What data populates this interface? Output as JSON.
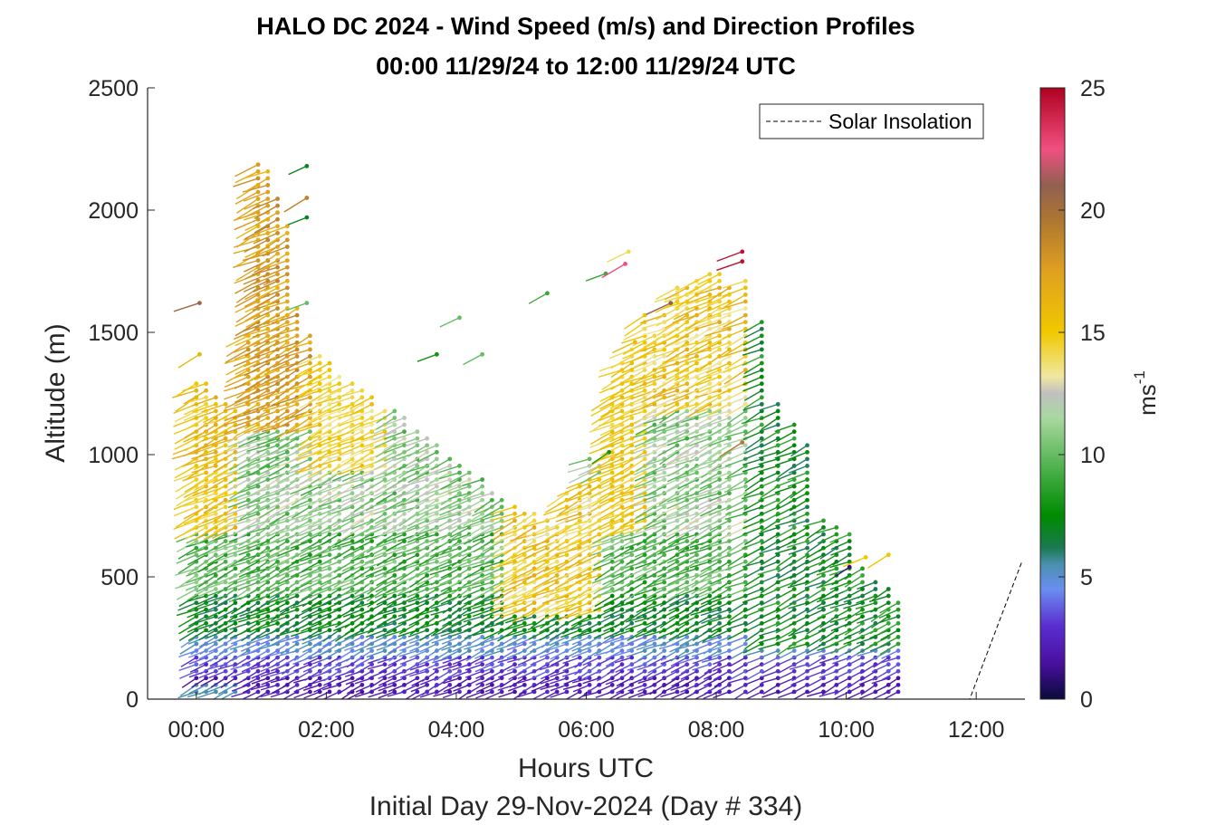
{
  "chart_data": {
    "type": "wind-barb-profile",
    "title_line1": "HALO DC 2024 - Wind Speed (m/s) and Direction Profiles",
    "title_line2": "00:00 11/29/24 to 12:00 11/29/24  UTC",
    "xlabel": "Hours UTC",
    "xlabel2": "Initial Day 29-Nov-2024 (Day # 334)",
    "ylabel": "Altitude (m)",
    "xlim": [
      -0.75,
      12.75
    ],
    "ylim": [
      0,
      2500
    ],
    "x_ticks": [
      0,
      2,
      4,
      6,
      8,
      10,
      12
    ],
    "x_tick_labels": [
      "00:00",
      "02:00",
      "04:00",
      "06:00",
      "08:00",
      "10:00",
      "12:00"
    ],
    "y_ticks": [
      0,
      500,
      1000,
      1500,
      2000,
      2500
    ],
    "y_tick_labels": [
      "0",
      "500",
      "1000",
      "1500",
      "2000",
      "2500"
    ],
    "colorbar": {
      "label": "ms",
      "label_exponent": "-1",
      "range": [
        0,
        25
      ],
      "ticks": [
        0,
        5,
        10,
        15,
        20,
        25
      ],
      "tick_labels": [
        "0",
        "5",
        "10",
        "15",
        "20",
        "25"
      ],
      "stops": [
        {
          "v": 0,
          "c": "#0a0a3a"
        },
        {
          "v": 1.5,
          "c": "#4a10a0"
        },
        {
          "v": 3,
          "c": "#5a2ed0"
        },
        {
          "v": 4.5,
          "c": "#6a8ef0"
        },
        {
          "v": 5.5,
          "c": "#4a90b0"
        },
        {
          "v": 6.2,
          "c": "#1a7a50"
        },
        {
          "v": 7.5,
          "c": "#008a00"
        },
        {
          "v": 9,
          "c": "#3aa83a"
        },
        {
          "v": 11.5,
          "c": "#a8d8a0"
        },
        {
          "v": 12.5,
          "c": "#c0c0c0"
        },
        {
          "v": 13.2,
          "c": "#f0e8a0"
        },
        {
          "v": 15,
          "c": "#f0c800"
        },
        {
          "v": 17.5,
          "c": "#e0a020"
        },
        {
          "v": 19.5,
          "c": "#b07830"
        },
        {
          "v": 21,
          "c": "#906050"
        },
        {
          "v": 22.5,
          "c": "#f05080"
        },
        {
          "v": 25,
          "c": "#b00020"
        }
      ]
    },
    "legend": {
      "label": "Solar Insolation",
      "position": "top-right",
      "line_color": "#000000"
    },
    "solar_insolation": {
      "x": [
        -0.75,
        11.9,
        12.7
      ],
      "y": [
        0,
        0,
        560
      ]
    },
    "profile_times": [
      0.0,
      0.15,
      0.3,
      0.45,
      0.6,
      0.8,
      0.95,
      1.1,
      1.25,
      1.4,
      1.55,
      1.75,
      1.9,
      2.05,
      2.2,
      2.4,
      2.55,
      2.7,
      2.9,
      3.05,
      3.2,
      3.4,
      3.55,
      3.7,
      3.9,
      4.05,
      4.2,
      4.4,
      4.55,
      4.7,
      4.9,
      5.05,
      5.2,
      5.4,
      5.55,
      5.7,
      5.9,
      6.05,
      6.2,
      6.4,
      6.55,
      6.7,
      6.9,
      7.05,
      7.2,
      7.4,
      7.55,
      7.7,
      7.9,
      8.05,
      8.2,
      8.45,
      8.7,
      8.95,
      9.2,
      9.4,
      9.65,
      9.85,
      10.05,
      10.25,
      10.45,
      10.65,
      10.8
    ],
    "profile_tops": [
      1300,
      1290,
      1250,
      1220,
      1180,
      1490,
      2200,
      2180,
      2050,
      1950,
      1600,
      1500,
      1420,
      1380,
      1320,
      1300,
      1280,
      1240,
      1200,
      1180,
      1160,
      1100,
      1080,
      1050,
      1000,
      960,
      930,
      900,
      860,
      820,
      800,
      780,
      760,
      740,
      720,
      860,
      880,
      1000,
      960,
      1250,
      1390,
      1450,
      1580,
      1500,
      1580,
      1700,
      1700,
      1720,
      1750,
      1760,
      1700,
      1710,
      1560,
      1220,
      1130,
      1050,
      740,
      720,
      700,
      540,
      500,
      460,
      400
    ],
    "isolated_barbs": [
      {
        "t": 0.05,
        "z": 1620,
        "s": 20.5
      },
      {
        "t": 0.05,
        "z": 1410,
        "s": 16
      },
      {
        "t": 1.7,
        "z": 2180,
        "s": 7
      },
      {
        "t": 1.7,
        "z": 2050,
        "s": 19
      },
      {
        "t": 1.7,
        "z": 1970,
        "s": 7
      },
      {
        "t": 1.7,
        "z": 1620,
        "s": 10
      },
      {
        "t": 3.7,
        "z": 1410,
        "s": 8
      },
      {
        "t": 4.05,
        "z": 1560,
        "s": 10
      },
      {
        "t": 4.4,
        "z": 1410,
        "s": 10
      },
      {
        "t": 5.4,
        "z": 1660,
        "s": 9
      },
      {
        "t": 6.3,
        "z": 1740,
        "s": 9
      },
      {
        "t": 6.6,
        "z": 1780,
        "s": 22.5
      },
      {
        "t": 6.65,
        "z": 1830,
        "s": 14
      },
      {
        "t": 6.75,
        "z": 1460,
        "s": 16
      },
      {
        "t": 7.3,
        "z": 1620,
        "s": 21
      },
      {
        "t": 8.4,
        "z": 1830,
        "s": 24.5
      },
      {
        "t": 8.4,
        "z": 1790,
        "s": 24.5
      },
      {
        "t": 8.4,
        "z": 1050,
        "s": 19.5
      },
      {
        "t": 6.35,
        "z": 1010,
        "s": 8
      },
      {
        "t": 10.3,
        "z": 580,
        "s": 15
      },
      {
        "t": 10.65,
        "z": 590,
        "s": 15
      },
      {
        "t": 10.05,
        "z": 540,
        "s": 1
      }
    ]
  }
}
